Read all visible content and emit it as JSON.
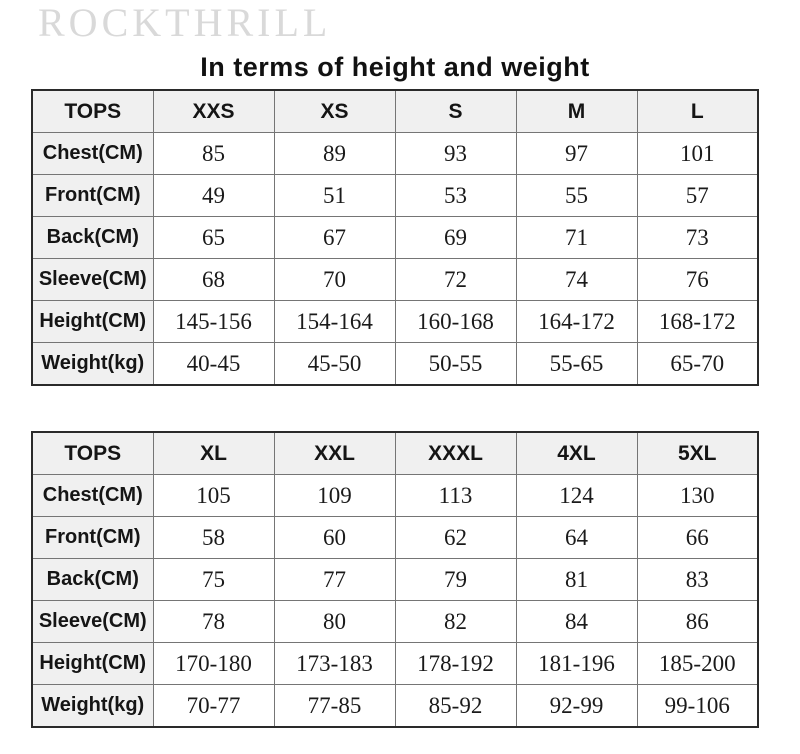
{
  "brand": "ROCKTHRILL",
  "title": "In terms of height and weight",
  "tables": [
    {
      "header": [
        "TOPS",
        "XXS",
        "XS",
        "S",
        "M",
        "L"
      ],
      "rows": [
        {
          "label": "Chest(CM)",
          "values": [
            "85",
            "89",
            "93",
            "97",
            "101"
          ]
        },
        {
          "label": "Front(CM)",
          "values": [
            "49",
            "51",
            "53",
            "55",
            "57"
          ]
        },
        {
          "label": "Back(CM)",
          "values": [
            "65",
            "67",
            "69",
            "71",
            "73"
          ]
        },
        {
          "label": "Sleeve(CM)",
          "values": [
            "68",
            "70",
            "72",
            "74",
            "76"
          ]
        },
        {
          "label": "Height(CM)",
          "values": [
            "145-156",
            "154-164",
            "160-168",
            "164-172",
            "168-172"
          ]
        },
        {
          "label": "Weight(kg)",
          "values": [
            "40-45",
            "45-50",
            "50-55",
            "55-65",
            "65-70"
          ]
        }
      ]
    },
    {
      "header": [
        "TOPS",
        "XL",
        "XXL",
        "XXXL",
        "4XL",
        "5XL"
      ],
      "rows": [
        {
          "label": "Chest(CM)",
          "values": [
            "105",
            "109",
            "113",
            "124",
            "130"
          ]
        },
        {
          "label": "Front(CM)",
          "values": [
            "58",
            "60",
            "62",
            "64",
            "66"
          ]
        },
        {
          "label": "Back(CM)",
          "values": [
            "75",
            "77",
            "79",
            "81",
            "83"
          ]
        },
        {
          "label": "Sleeve(CM)",
          "values": [
            "78",
            "80",
            "82",
            "84",
            "86"
          ]
        },
        {
          "label": "Height(CM)",
          "values": [
            "170-180",
            "173-183",
            "178-192",
            "181-196",
            "185-200"
          ]
        },
        {
          "label": "Weight(kg)",
          "values": [
            "70-77",
            "77-85",
            "85-92",
            "92-99",
            "99-106"
          ]
        }
      ]
    }
  ],
  "colors": {
    "header_bg": "#f0f0f0",
    "label_bg": "#f0f0f0",
    "inner_border": "#757575",
    "outer_border": "#2a2a2a",
    "brand": "#d9d9d9",
    "text": "#111111"
  }
}
